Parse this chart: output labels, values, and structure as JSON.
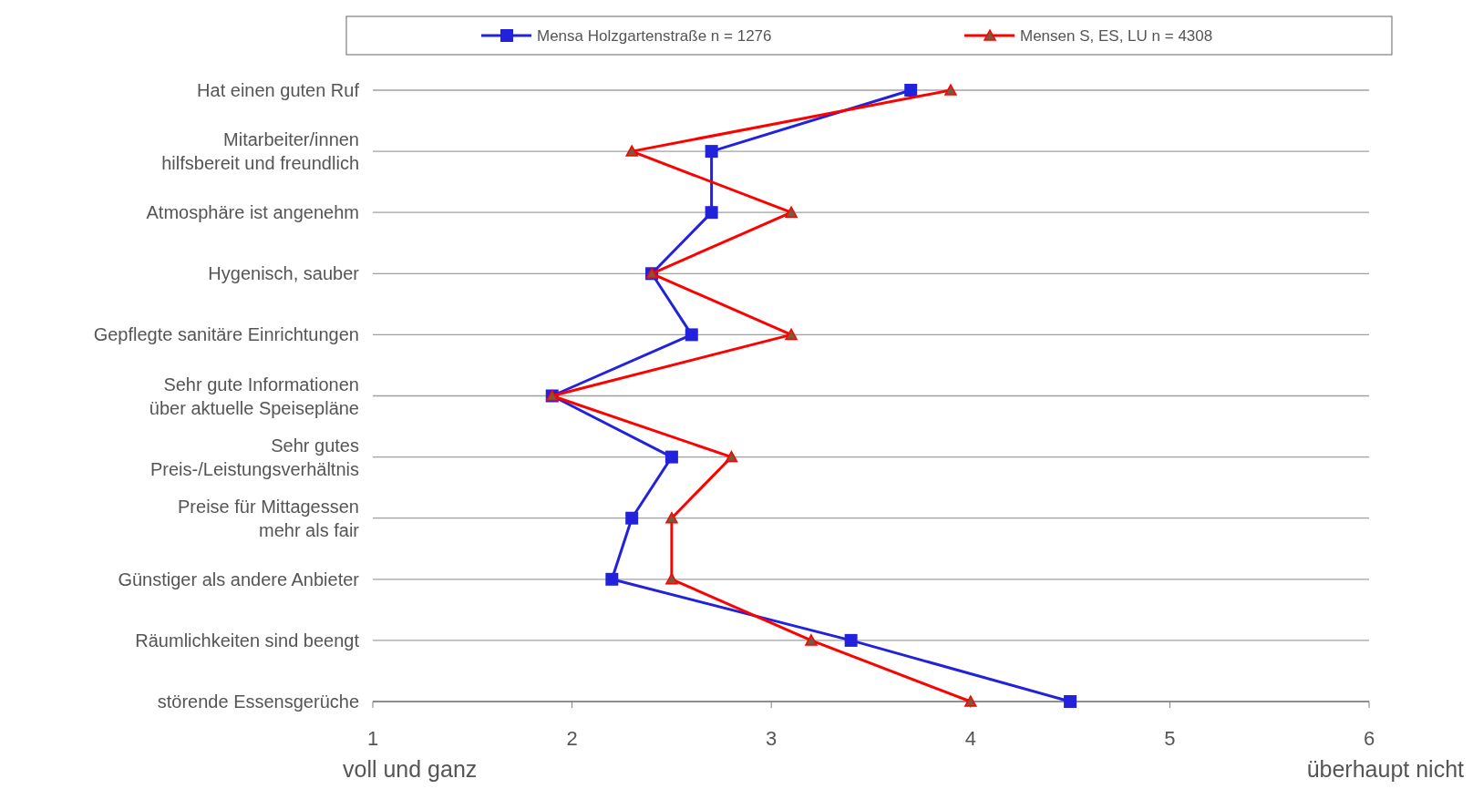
{
  "chart_data": {
    "type": "line",
    "orientation": "horizontal",
    "categories": [
      "Hat einen guten Ruf",
      "Mitarbeiter/innen\nhilfsbereit und freundlich",
      "Atmosphäre ist angenehm",
      "Hygenisch, sauber",
      "Gepflegte sanitäre Einrichtungen",
      "Sehr gute Informationen\nüber aktuelle Speisepläne",
      "Sehr gutes\nPreis-/Leistungsverhältnis",
      "Preise für Mittagessen\nmehr als fair",
      "Günstiger als andere Anbieter",
      "Räumlichkeiten sind beengt",
      "störende Essensgerüche"
    ],
    "series": [
      {
        "name": "Mensa Holzgartenstraße n = 1276",
        "color": "#2222dd",
        "marker": "square",
        "values": [
          3.7,
          2.7,
          2.7,
          2.4,
          2.6,
          1.9,
          2.5,
          2.3,
          2.2,
          3.4,
          4.5
        ]
      },
      {
        "name": "Mensen S, ES, LU n = 4308",
        "color": "#ff0000",
        "marker": "triangle",
        "values": [
          3.9,
          2.3,
          3.1,
          2.4,
          3.1,
          1.9,
          2.8,
          2.5,
          2.5,
          3.2,
          4.0
        ]
      }
    ],
    "xlim": [
      1,
      6
    ],
    "xticks": [
      1,
      2,
      3,
      4,
      5,
      6
    ],
    "grid": "y",
    "legend": "top",
    "line_style": "solid",
    "annotations": [
      "voll und ganz",
      "überhaupt nicht"
    ]
  }
}
